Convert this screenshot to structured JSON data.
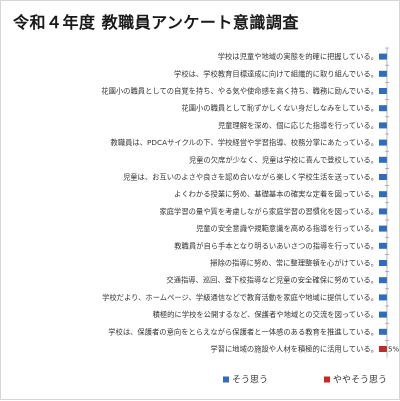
{
  "chart_data": {
    "type": "bar",
    "orientation": "horizontal-stacked",
    "title": "令和４年度 教職員アンケート意識調査",
    "categories": [
      "学校は児童や地域の実態を的確に把握している。",
      "学校は、学校教育目標達成に向けて組織的に取り組んでいる。",
      "花園小の職員としての自覚を持ち、やる気や使命感を高く持ち、職務に励んでいる。",
      "花園小の職員として恥ずかしくない身だしなみをしている。",
      "児童理解を深め、個に応じた指導を行っている。",
      "教職員は、PDCAサイクルの下、学校経営や学習指導、校務分掌にあたっている。",
      "児童の欠席が少なく、児童は学校に喜んで登校している。",
      "児童は、お互いのよさや良さを認め合いながら楽しく学校生活を送っている。",
      "よくわかる授業に努め、基礎基本の確実な定着を図っている。",
      "家庭学習の量や質を考慮しながら家庭学習の習慣化を図っている。",
      "児童の安全意識や規範意識を高める指導を行っている。",
      "教職員が自ら手本となり明るいあいさつの指導を行っている。",
      "掃除の指導に努め、常に整理整頓を心がけている。",
      "交通指導、巡回、登下校指導など児童の安全確保に努めている。",
      "学校だより、ホームページ、学級通信などで教育活動を家庭や地域に提供している。",
      "積極的に学校を公開するなど、保護者や地域との交流を図っている。",
      "学校は、保護者の意向をとらえながら保護者と一体感のある教育を推進している。",
      "学習に地域の施設や人材を積極的に活用している。"
    ],
    "series": [
      {
        "name": "そう思う",
        "values": [
          100,
          100,
          100,
          100,
          100,
          100,
          100,
          100,
          100,
          100,
          100,
          100,
          100,
          100,
          100,
          100,
          100,
          95
        ]
      },
      {
        "name": "ややそう思う",
        "values": [
          0,
          0,
          0,
          0,
          0,
          0,
          0,
          0,
          0,
          0,
          0,
          0,
          0,
          0,
          0,
          0,
          0,
          5
        ]
      }
    ],
    "data_labels": [
      "",
      "",
      "",
      "",
      "",
      "",
      "",
      "",
      "",
      "",
      "",
      "",
      "",
      "",
      "",
      "",
      "",
      "5%"
    ],
    "xlim": [
      0,
      100
    ],
    "colors": {
      "series": [
        "#2f6cc0",
        "#c62828"
      ],
      "tick": "#888888"
    },
    "legend": "bottom"
  }
}
